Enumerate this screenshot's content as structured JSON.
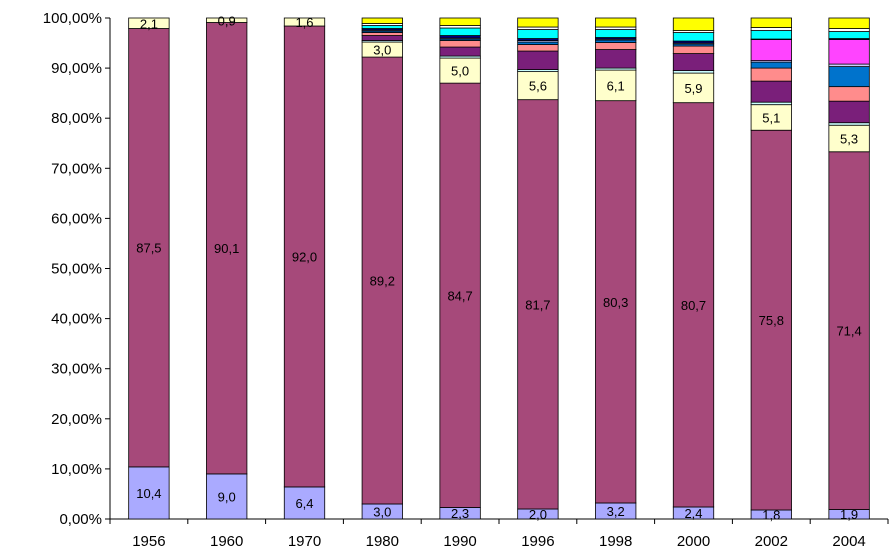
{
  "chart_data": {
    "type": "bar",
    "stacked": true,
    "normalized": true,
    "title": "",
    "xlabel": "",
    "ylabel": "",
    "ylim": [
      0,
      100
    ],
    "grid": false,
    "legend": "none",
    "categories": [
      "1956",
      "1960",
      "1970",
      "1980",
      "1990",
      "1996",
      "1998",
      "2000",
      "2002",
      "2004"
    ],
    "y_ticks": [
      "0,00%",
      "10,00%",
      "20,00%",
      "30,00%",
      "40,00%",
      "50,00%",
      "60,00%",
      "70,00%",
      "80,00%",
      "90,00%",
      "100,00%"
    ],
    "series": [
      {
        "color": "#aaaaff",
        "values": [
          10.4,
          9.0,
          6.4,
          3.0,
          2.3,
          2.0,
          3.2,
          2.4,
          1.8,
          1.9
        ],
        "labels": [
          "10,4",
          "9,0",
          "6,4",
          "3,0",
          "2,3",
          "2,0",
          "3,2",
          "2,4",
          "1,8",
          "1,9"
        ]
      },
      {
        "color": "#a6497a",
        "values": [
          87.5,
          90.1,
          92.0,
          89.2,
          84.7,
          81.7,
          80.3,
          80.7,
          75.8,
          71.4
        ],
        "labels": [
          "87,5",
          "90,1",
          "92,0",
          "89,2",
          "84,7",
          "81,7",
          "80,3",
          "80,7",
          "75,8",
          "71,4"
        ]
      },
      {
        "color": "#ffffcc",
        "values": [
          2.1,
          0.9,
          1.6,
          3.0,
          5.0,
          5.6,
          6.1,
          5.9,
          5.1,
          5.3
        ],
        "labels": [
          "2,1",
          "0,9",
          "1,6",
          "3,0",
          "5,0",
          "5,6",
          "6,1",
          "5,9",
          "5,1",
          "5,3"
        ]
      },
      {
        "color": "#ccffff",
        "values": [
          0,
          0,
          0,
          0.3,
          0.4,
          0.4,
          0.4,
          0.5,
          0.5,
          0.5
        ]
      },
      {
        "color": "#7a1f7a",
        "values": [
          0,
          0,
          0,
          1.0,
          1.8,
          3.7,
          3.7,
          3.4,
          4.2,
          4.3
        ]
      },
      {
        "color": "#ff8c8c",
        "values": [
          0,
          0,
          0,
          0.6,
          1.3,
          1.3,
          1.4,
          1.5,
          2.6,
          2.9
        ]
      },
      {
        "color": "#0073cc",
        "values": [
          0,
          0,
          0,
          0.3,
          0.3,
          0.5,
          0.5,
          0.4,
          1.2,
          4.0
        ]
      },
      {
        "color": "#ccccff",
        "values": [
          0,
          0,
          0,
          0.2,
          0.2,
          0.3,
          0.2,
          0.2,
          0.3,
          0.5
        ]
      },
      {
        "color": "#ff44ff",
        "values": [
          0,
          0,
          0,
          0,
          0,
          0,
          0,
          0,
          4.2,
          4.9
        ]
      },
      {
        "color": "#000080",
        "values": [
          0,
          0,
          0,
          0.3,
          0.5,
          0.4,
          0.3,
          0.4,
          0.1,
          0.2
        ]
      },
      {
        "color": "#00ffff",
        "values": [
          0,
          0,
          0,
          0.6,
          1.5,
          1.8,
          1.6,
          1.7,
          1.7,
          1.4
        ]
      },
      {
        "color": "#ffffff",
        "values": [
          0,
          0,
          0,
          0.4,
          0.5,
          0.5,
          0.5,
          0.4,
          0.6,
          0.6
        ]
      },
      {
        "color": "#ffff00",
        "values": [
          0,
          0,
          0,
          1.1,
          1.5,
          1.8,
          1.8,
          2.9,
          1.9,
          2.2
        ]
      }
    ]
  }
}
